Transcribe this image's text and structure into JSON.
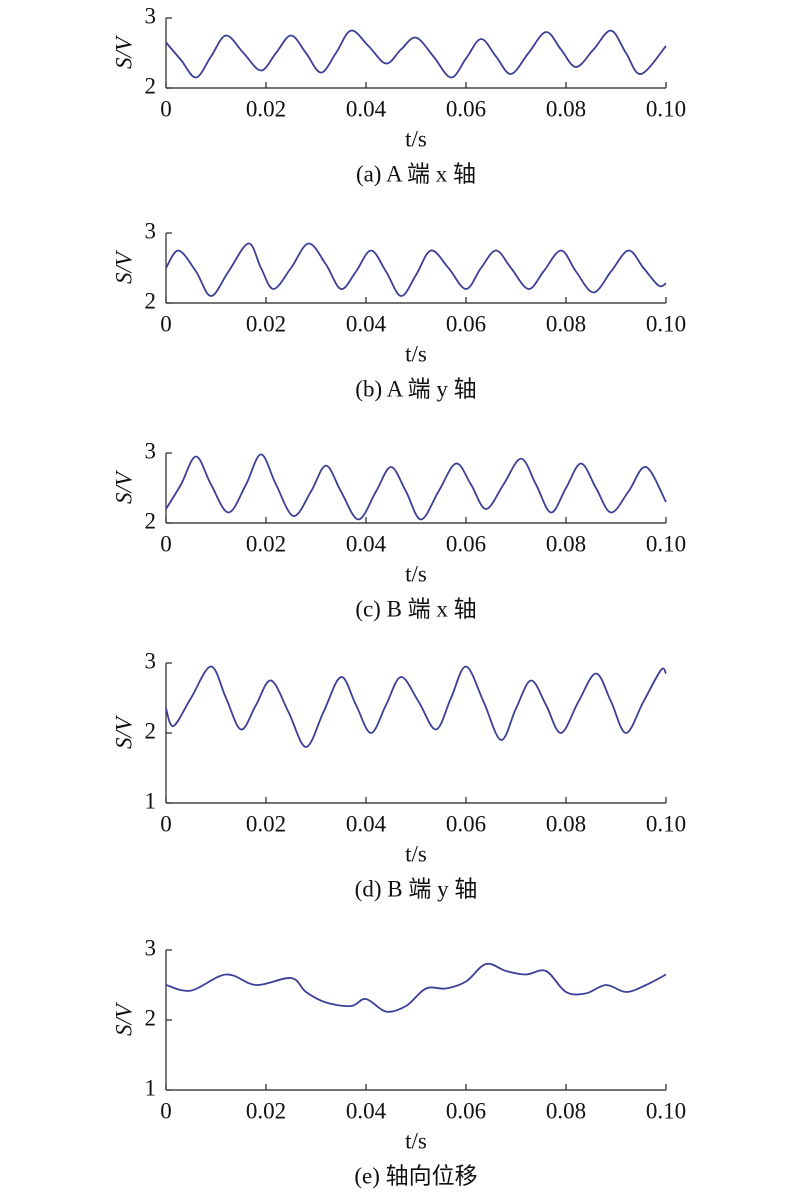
{
  "chart_data": [
    {
      "type": "line",
      "title": "(a) A 端 x 轴",
      "xlabel": "t/s",
      "ylabel": "S/V",
      "color": "#3b3f96",
      "x": [
        0,
        0.003,
        0.006,
        0.009,
        0.012,
        0.0155,
        0.019,
        0.022,
        0.025,
        0.028,
        0.031,
        0.034,
        0.037,
        0.0405,
        0.044,
        0.047,
        0.05,
        0.0535,
        0.057,
        0.06,
        0.063,
        0.066,
        0.069,
        0.0725,
        0.076,
        0.079,
        0.082,
        0.0855,
        0.089,
        0.092,
        0.095,
        0.1
      ],
      "values": [
        2.65,
        2.4,
        2.15,
        2.45,
        2.75,
        2.5,
        2.25,
        2.5,
        2.75,
        2.5,
        2.22,
        2.5,
        2.82,
        2.6,
        2.35,
        2.55,
        2.72,
        2.45,
        2.15,
        2.42,
        2.7,
        2.45,
        2.2,
        2.5,
        2.8,
        2.55,
        2.3,
        2.55,
        2.82,
        2.5,
        2.2,
        2.6
      ],
      "xlim": [
        0,
        0.1
      ],
      "xticks": [
        0,
        0.02,
        0.04,
        0.06,
        0.08,
        {
          "value": 0.1,
          "label": "0.10"
        }
      ],
      "ylim": [
        2,
        3
      ],
      "yticks": [
        2,
        3
      ]
    },
    {
      "type": "line",
      "title": "(b) A 端 y 轴",
      "xlabel": "t/s",
      "ylabel": "S/V",
      "color": "#3b3f96",
      "x": [
        0,
        0.0025,
        0.006,
        0.009,
        0.0125,
        0.0165,
        0.019,
        0.0215,
        0.025,
        0.0285,
        0.032,
        0.035,
        0.038,
        0.041,
        0.044,
        0.047,
        0.05,
        0.053,
        0.0565,
        0.06,
        0.063,
        0.066,
        0.069,
        0.0725,
        0.0755,
        0.079,
        0.082,
        0.0855,
        0.089,
        0.0925,
        0.0955,
        0.0985,
        0.1
      ],
      "values": [
        2.5,
        2.75,
        2.45,
        2.1,
        2.45,
        2.85,
        2.5,
        2.2,
        2.5,
        2.85,
        2.55,
        2.2,
        2.45,
        2.75,
        2.45,
        2.1,
        2.4,
        2.75,
        2.5,
        2.2,
        2.5,
        2.75,
        2.5,
        2.2,
        2.45,
        2.75,
        2.45,
        2.15,
        2.45,
        2.75,
        2.5,
        2.25,
        2.28
      ],
      "xlim": [
        0,
        0.1
      ],
      "xticks": [
        0,
        0.02,
        0.04,
        0.06,
        0.08,
        {
          "value": 0.1,
          "label": "0.10"
        }
      ],
      "ylim": [
        2,
        3
      ],
      "yticks": [
        2,
        3
      ]
    },
    {
      "type": "line",
      "title": "(c) B 端 x 轴",
      "xlabel": "t/s",
      "ylabel": "S/V",
      "color": "#3b3f96",
      "x": [
        0,
        0.003,
        0.006,
        0.009,
        0.0125,
        0.016,
        0.019,
        0.022,
        0.0255,
        0.029,
        0.032,
        0.035,
        0.0385,
        0.042,
        0.045,
        0.048,
        0.051,
        0.0545,
        0.058,
        0.061,
        0.064,
        0.0675,
        0.071,
        0.074,
        0.077,
        0.08,
        0.083,
        0.086,
        0.089,
        0.0925,
        0.096,
        0.1
      ],
      "values": [
        2.2,
        2.55,
        2.95,
        2.55,
        2.15,
        2.55,
        2.98,
        2.55,
        2.1,
        2.45,
        2.82,
        2.45,
        2.05,
        2.45,
        2.8,
        2.45,
        2.05,
        2.45,
        2.85,
        2.55,
        2.2,
        2.55,
        2.92,
        2.55,
        2.15,
        2.5,
        2.85,
        2.5,
        2.15,
        2.45,
        2.8,
        2.3
      ],
      "xlim": [
        0,
        0.1
      ],
      "xticks": [
        0,
        0.02,
        0.04,
        0.06,
        0.08,
        {
          "value": 0.1,
          "label": "0.10"
        }
      ],
      "ylim": [
        2,
        3
      ],
      "yticks": [
        2,
        3
      ]
    },
    {
      "type": "line",
      "title": "(d) B 端 y 轴",
      "xlabel": "t/s",
      "ylabel": "S/V",
      "color": "#3b3f96",
      "x": [
        0,
        0.0015,
        0.005,
        0.009,
        0.012,
        0.015,
        0.018,
        0.021,
        0.0245,
        0.028,
        0.0315,
        0.035,
        0.038,
        0.041,
        0.044,
        0.047,
        0.0505,
        0.054,
        0.057,
        0.06,
        0.0635,
        0.067,
        0.07,
        0.073,
        0.076,
        0.079,
        0.0825,
        0.086,
        0.089,
        0.092,
        0.0955,
        0.099,
        0.1
      ],
      "values": [
        2.35,
        2.1,
        2.5,
        2.95,
        2.5,
        2.05,
        2.4,
        2.75,
        2.3,
        1.8,
        2.3,
        2.8,
        2.4,
        2.0,
        2.4,
        2.8,
        2.45,
        2.05,
        2.5,
        2.95,
        2.45,
        1.9,
        2.35,
        2.75,
        2.4,
        2.0,
        2.45,
        2.85,
        2.45,
        2.0,
        2.45,
        2.9,
        2.85
      ],
      "xlim": [
        0,
        0.1
      ],
      "xticks": [
        0,
        0.02,
        0.04,
        0.06,
        0.08,
        {
          "value": 0.1,
          "label": "0.10"
        }
      ],
      "ylim": [
        1,
        3
      ],
      "yticks": [
        1,
        2,
        3
      ]
    },
    {
      "type": "line",
      "title": "(e) 轴向位移",
      "xlabel": "t/s",
      "ylabel": "S/V",
      "color": "#3b3f96",
      "x": [
        0,
        0.005,
        0.012,
        0.018,
        0.025,
        0.028,
        0.032,
        0.037,
        0.04,
        0.044,
        0.048,
        0.052,
        0.056,
        0.06,
        0.064,
        0.068,
        0.072,
        0.076,
        0.08,
        0.084,
        0.088,
        0.092,
        0.096,
        0.1
      ],
      "values": [
        2.5,
        2.42,
        2.65,
        2.5,
        2.6,
        2.4,
        2.25,
        2.2,
        2.3,
        2.12,
        2.2,
        2.45,
        2.45,
        2.55,
        2.8,
        2.7,
        2.65,
        2.7,
        2.4,
        2.38,
        2.5,
        2.4,
        2.5,
        2.65
      ],
      "xlim": [
        0,
        0.1
      ],
      "xticks": [
        0,
        0.02,
        0.04,
        0.06,
        0.08,
        {
          "value": 0.1,
          "label": "0.10"
        }
      ],
      "ylim": [
        1,
        3
      ],
      "yticks": [
        1,
        2,
        3
      ]
    }
  ]
}
